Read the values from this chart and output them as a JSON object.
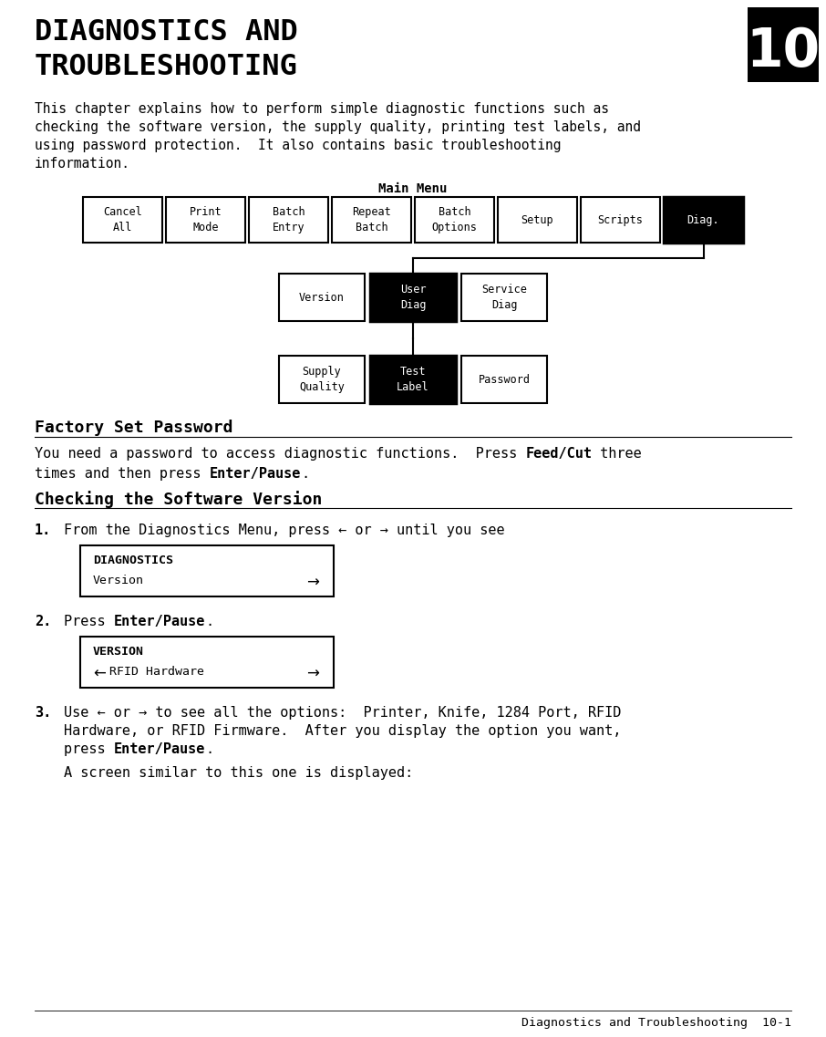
{
  "title_line1": "DIAGNOSTICS AND",
  "title_line2": "TROUBLESHOOTING",
  "chapter_num": "10",
  "intro_text_lines": [
    "This chapter explains how to perform simple diagnostic functions such as",
    "checking the software version, the supply quality, printing test labels, and",
    "using password protection.  It also contains basic troubleshooting",
    "information."
  ],
  "main_menu_label": "Main Menu",
  "menu_row1": [
    "Cancel\nAll",
    "Print\nMode",
    "Batch\nEntry",
    "Repeat\nBatch",
    "Batch\nOptions",
    "Setup",
    "Scripts",
    "Diag."
  ],
  "menu_row1_bold_idx": [
    7
  ],
  "menu_row2": [
    "Version",
    "User\nDiag",
    "Service\nDiag"
  ],
  "menu_row2_bold_idx": [
    1
  ],
  "menu_row3": [
    "Supply\nQuality",
    "Test\nLabel",
    "Password"
  ],
  "menu_row3_bold_idx": [
    1
  ],
  "section1_title": "Factory Set Password",
  "section1_body_line1": [
    [
      "You need a password to access diagnostic functions.  Press ",
      false
    ],
    [
      "Feed/Cut",
      true
    ],
    [
      " three",
      false
    ]
  ],
  "section1_body_line2": [
    [
      "times and then press ",
      false
    ],
    [
      "Enter/Pause",
      true
    ],
    [
      ".",
      false
    ]
  ],
  "section2_title": "Checking the Software Version",
  "step1_num": "1.",
  "step1_text": "From the Diagnostics Menu, press ← or → until you see",
  "box1_line1": "DIAGNOSTICS",
  "box1_line2": "Version",
  "box1_right_arrow": "→",
  "step2_num": "2.",
  "step2_line": [
    [
      "Press ",
      false
    ],
    [
      "Enter/Pause",
      true
    ],
    [
      ".",
      false
    ]
  ],
  "box2_line1": "VERSION",
  "box2_left_arrow": "←",
  "box2_line2": "RFID Hardware",
  "box2_right_arrow": "→",
  "step3_num": "3.",
  "step3_text1": "Use ← or → to see all the options:  Printer, Knife, 1284 Port, RFID",
  "step3_text2": "Hardware, or RFID Firmware.  After you display the option you want,",
  "step3_line3": [
    [
      "press ",
      false
    ],
    [
      "Enter/Pause",
      true
    ],
    [
      ".",
      false
    ]
  ],
  "step4_text": "A screen similar to this one is displayed:",
  "footer": "Diagnostics and Troubleshooting  10-1",
  "bg_color": "#ffffff",
  "fg_color": "#000000"
}
